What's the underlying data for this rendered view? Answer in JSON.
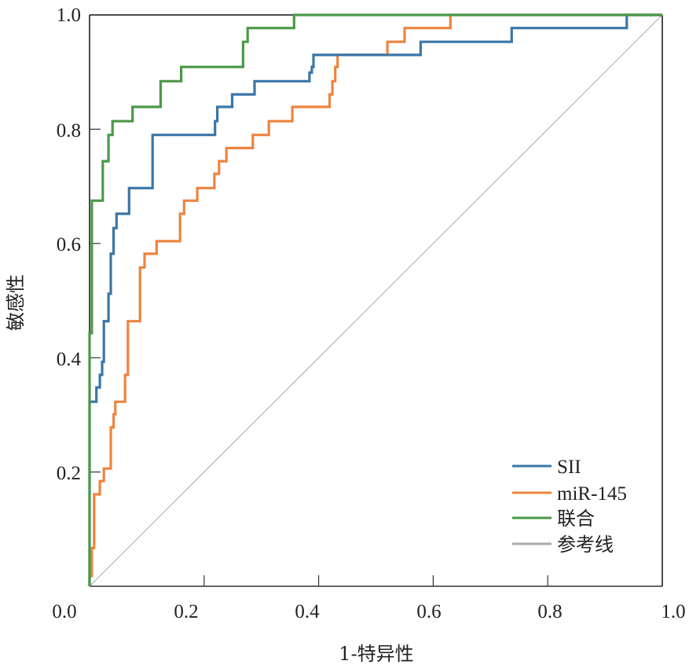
{
  "chart_data": {
    "type": "line",
    "title": "",
    "xlabel": "1-特异性",
    "ylabel": "敏感性",
    "xlim": [
      0,
      1
    ],
    "ylim": [
      0,
      1
    ],
    "x_ticks": [
      "0.0",
      "0.2",
      "0.4",
      "0.6",
      "0.8",
      "1.0"
    ],
    "y_ticks": [
      "0.2",
      "0.4",
      "0.6",
      "0.8",
      "1.0"
    ],
    "y_tick_values": [
      0.2,
      0.4,
      0.6,
      0.8,
      1.0
    ],
    "x_tick_values": [
      0.0,
      0.2,
      0.4,
      0.6,
      0.8,
      1.0
    ],
    "grid": false,
    "legend_position": "bottom-right",
    "series": [
      {
        "name": "SII",
        "color": "#3a76a8",
        "step": true,
        "points": [
          [
            0.0,
            0.0
          ],
          [
            0.0,
            0.323
          ],
          [
            0.012,
            0.323
          ],
          [
            0.012,
            0.348
          ],
          [
            0.018,
            0.348
          ],
          [
            0.018,
            0.37
          ],
          [
            0.022,
            0.37
          ],
          [
            0.022,
            0.393
          ],
          [
            0.025,
            0.393
          ],
          [
            0.025,
            0.464
          ],
          [
            0.033,
            0.464
          ],
          [
            0.033,
            0.512
          ],
          [
            0.037,
            0.512
          ],
          [
            0.037,
            0.582
          ],
          [
            0.042,
            0.582
          ],
          [
            0.042,
            0.627
          ],
          [
            0.047,
            0.627
          ],
          [
            0.047,
            0.652
          ],
          [
            0.069,
            0.652
          ],
          [
            0.069,
            0.697
          ],
          [
            0.11,
            0.697
          ],
          [
            0.11,
            0.79
          ],
          [
            0.219,
            0.79
          ],
          [
            0.219,
            0.814
          ],
          [
            0.223,
            0.814
          ],
          [
            0.223,
            0.839
          ],
          [
            0.249,
            0.839
          ],
          [
            0.249,
            0.861
          ],
          [
            0.288,
            0.861
          ],
          [
            0.288,
            0.884
          ],
          [
            0.384,
            0.884
          ],
          [
            0.384,
            0.899
          ],
          [
            0.388,
            0.899
          ],
          [
            0.388,
            0.909
          ],
          [
            0.391,
            0.909
          ],
          [
            0.391,
            0.93
          ],
          [
            0.578,
            0.93
          ],
          [
            0.578,
            0.953
          ],
          [
            0.737,
            0.953
          ],
          [
            0.737,
            0.977
          ],
          [
            0.938,
            0.977
          ],
          [
            0.938,
            1.0
          ],
          [
            1.0,
            1.0
          ]
        ]
      },
      {
        "name": "miR-145",
        "color": "#ee843f",
        "step": true,
        "points": [
          [
            0.0,
            0.0
          ],
          [
            0.0,
            0.018
          ],
          [
            0.004,
            0.018
          ],
          [
            0.004,
            0.067
          ],
          [
            0.008,
            0.067
          ],
          [
            0.008,
            0.161
          ],
          [
            0.018,
            0.161
          ],
          [
            0.018,
            0.184
          ],
          [
            0.025,
            0.184
          ],
          [
            0.025,
            0.206
          ],
          [
            0.037,
            0.206
          ],
          [
            0.037,
            0.278
          ],
          [
            0.042,
            0.278
          ],
          [
            0.042,
            0.301
          ],
          [
            0.045,
            0.301
          ],
          [
            0.045,
            0.323
          ],
          [
            0.062,
            0.323
          ],
          [
            0.062,
            0.37
          ],
          [
            0.067,
            0.37
          ],
          [
            0.067,
            0.464
          ],
          [
            0.088,
            0.464
          ],
          [
            0.088,
            0.558
          ],
          [
            0.096,
            0.558
          ],
          [
            0.096,
            0.582
          ],
          [
            0.117,
            0.582
          ],
          [
            0.117,
            0.604
          ],
          [
            0.158,
            0.604
          ],
          [
            0.158,
            0.652
          ],
          [
            0.165,
            0.652
          ],
          [
            0.165,
            0.675
          ],
          [
            0.188,
            0.675
          ],
          [
            0.188,
            0.697
          ],
          [
            0.218,
            0.697
          ],
          [
            0.218,
            0.722
          ],
          [
            0.226,
            0.722
          ],
          [
            0.226,
            0.744
          ],
          [
            0.239,
            0.744
          ],
          [
            0.239,
            0.767
          ],
          [
            0.285,
            0.767
          ],
          [
            0.285,
            0.79
          ],
          [
            0.313,
            0.79
          ],
          [
            0.313,
            0.814
          ],
          [
            0.354,
            0.814
          ],
          [
            0.354,
            0.839
          ],
          [
            0.419,
            0.839
          ],
          [
            0.419,
            0.861
          ],
          [
            0.424,
            0.861
          ],
          [
            0.424,
            0.884
          ],
          [
            0.429,
            0.884
          ],
          [
            0.429,
            0.909
          ],
          [
            0.433,
            0.909
          ],
          [
            0.433,
            0.93
          ],
          [
            0.52,
            0.93
          ],
          [
            0.52,
            0.953
          ],
          [
            0.55,
            0.953
          ],
          [
            0.55,
            0.977
          ],
          [
            0.63,
            0.977
          ],
          [
            0.63,
            1.0
          ],
          [
            1.0,
            1.0
          ]
        ]
      },
      {
        "name": "联合",
        "color": "#4a9a48",
        "step": true,
        "points": [
          [
            0.0,
            0.0
          ],
          [
            0.0,
            0.443
          ],
          [
            0.004,
            0.443
          ],
          [
            0.004,
            0.675
          ],
          [
            0.023,
            0.675
          ],
          [
            0.023,
            0.744
          ],
          [
            0.033,
            0.744
          ],
          [
            0.033,
            0.79
          ],
          [
            0.04,
            0.79
          ],
          [
            0.04,
            0.814
          ],
          [
            0.075,
            0.814
          ],
          [
            0.075,
            0.839
          ],
          [
            0.124,
            0.839
          ],
          [
            0.124,
            0.884
          ],
          [
            0.16,
            0.884
          ],
          [
            0.16,
            0.909
          ],
          [
            0.268,
            0.909
          ],
          [
            0.268,
            0.953
          ],
          [
            0.276,
            0.953
          ],
          [
            0.276,
            0.977
          ],
          [
            0.357,
            0.977
          ],
          [
            0.357,
            1.0
          ],
          [
            1.0,
            1.0
          ]
        ]
      },
      {
        "name": "参考线",
        "color": "#aaaaaa",
        "step": false,
        "points": [
          [
            0.0,
            0.0
          ],
          [
            1.0,
            1.0
          ]
        ]
      }
    ]
  }
}
